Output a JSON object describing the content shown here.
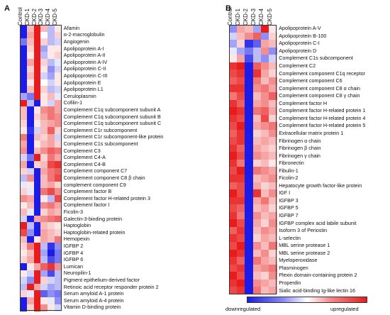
{
  "chart_data": [
    {
      "type": "heatmap",
      "panel": "A",
      "columns": [
        "Control",
        "CKD-1",
        "CKD-2",
        "CKD-3",
        "CKD-4",
        "CKD-5"
      ],
      "rows": [
        "Afamin",
        "α-2-macroglobulin",
        "Angiogenin",
        "Apolipoprotein A-I",
        "Apolipoprotein A-II",
        "Apolipoprotein A-IV",
        "Apolipoprotein C-II",
        "Apolipoprotein C-III",
        "Apolipoprotein E",
        "Apolipoprotein L1",
        "Ceruloplasmin",
        "Cofilin-1",
        "Complement C1q subcomponent subunit A",
        "Complement C1q subcomponent subunit B",
        "Complement C1q subcomponent subunit C",
        "Complement C1r subcomponent",
        "Complement C1r subcomponent-like protein",
        "Complement C1s subcomponent",
        "Complement C3",
        "Complement C4-A",
        "Complement C4-B",
        "Complement component C7",
        "Complement component C8 β chain",
        "complement component C9",
        "Complement factor B",
        "Complement factor H-related protein 3",
        "Complement factor I",
        "Ficolin-3",
        "Galectin-3-binding protein",
        "Haptoglobin",
        "Haptoglobin-related protein",
        "Hemopexin",
        "IGFBP 2",
        "IGFBP 4",
        "IGFBP 6",
        "Lumican",
        "Neuropilin-1",
        "Pigment epithelium-derived factor",
        "Retinoic acid receptor responder protein 2",
        "Serum amyloid A-1 protein",
        "Serum amyloid A-4 protein",
        "Vitamin D-binding protein"
      ],
      "values": [
        [
          -1,
          0.3,
          1,
          0.3,
          -0.3,
          0.1
        ],
        [
          -1,
          0.4,
          1,
          0,
          -0.3,
          0.2
        ],
        [
          -0.6,
          0.3,
          1,
          0.2,
          -0.3,
          -0.2
        ],
        [
          -1,
          0.2,
          1,
          -0.4,
          0.1,
          0.1
        ],
        [
          -1,
          0.1,
          1,
          -0.3,
          0.1,
          0.2
        ],
        [
          -1,
          0.4,
          1,
          0.2,
          -0.3,
          -0.1
        ],
        [
          -1,
          0.2,
          1,
          0.1,
          -0.5,
          -0.2
        ],
        [
          -1,
          0.3,
          1,
          -0.2,
          -0.4,
          0.1
        ],
        [
          -1,
          0.1,
          1,
          0,
          -0.2,
          0.1
        ],
        [
          -1,
          0.3,
          1,
          0.2,
          -0.3,
          -0.2
        ],
        [
          -0.4,
          -0.6,
          1,
          0.1,
          0.3,
          -0.1
        ],
        [
          1,
          -0.3,
          -1,
          0.1,
          -0.2,
          0.4
        ],
        [
          0.3,
          -1,
          0.1,
          0.5,
          0.6,
          0.4
        ],
        [
          0.3,
          -1,
          0.2,
          0.4,
          0.6,
          0.5
        ],
        [
          0.2,
          -1,
          0.1,
          0.3,
          0.4,
          0.5
        ],
        [
          0.1,
          -0.9,
          -0.2,
          0.3,
          0.7,
          0.2
        ],
        [
          0.6,
          -1,
          0.3,
          0.2,
          0.4,
          -0.2
        ],
        [
          0.4,
          -1,
          0.1,
          0.3,
          0.4,
          0.2
        ],
        [
          0.5,
          -1,
          0.3,
          0.5,
          0.7,
          0.6
        ],
        [
          -0.2,
          -0.6,
          1,
          0.2,
          0.6,
          0.4
        ],
        [
          0.4,
          -1,
          0.2,
          0.3,
          0.8,
          0.9
        ],
        [
          0.2,
          -0.2,
          -1,
          0.4,
          0.6,
          0.7
        ],
        [
          -0.3,
          0.5,
          -1,
          0.3,
          0.6,
          0.8
        ],
        [
          -0.1,
          0.1,
          -1,
          0.3,
          0.4,
          0.2
        ],
        [
          0.2,
          -0.1,
          -1,
          0.6,
          0.8,
          0.5
        ],
        [
          0.5,
          0.4,
          -1,
          0.1,
          -0.3,
          0.8
        ],
        [
          0.1,
          0.3,
          -1,
          0.5,
          0.6,
          0.4
        ],
        [
          0.3,
          -0.1,
          -1,
          0.2,
          0.4,
          0.3
        ],
        [
          -0.2,
          -1,
          0.4,
          0.5,
          0.6,
          0.7
        ],
        [
          1,
          -0.3,
          -1,
          0.3,
          0.2,
          0.1
        ],
        [
          0.8,
          -0.5,
          -1,
          0.4,
          0.3,
          0.2
        ],
        [
          0.3,
          -1,
          0.1,
          0.4,
          0.3,
          0.6
        ],
        [
          0.2,
          0.6,
          1,
          -0.3,
          -0.9,
          -0.5
        ],
        [
          0.1,
          0.3,
          1,
          -0.4,
          -1,
          -0.6
        ],
        [
          0.2,
          0.4,
          1,
          -0.3,
          -0.8,
          -0.6
        ],
        [
          -1,
          0.1,
          0.4,
          0.7,
          0.9,
          0.5
        ],
        [
          0.1,
          -0.2,
          1,
          -0.4,
          -0.8,
          -0.3
        ],
        [
          -0.2,
          -0.5,
          1,
          0.2,
          -0.2,
          -0.3
        ],
        [
          -0.3,
          1,
          0.4,
          -0.2,
          -0.4,
          -0.3
        ],
        [
          0.2,
          -0.1,
          1,
          -0.7,
          -0.5,
          -0.6
        ],
        [
          -1,
          0.4,
          1,
          0.1,
          -0.1,
          -0.5
        ],
        [
          -1,
          0.2,
          1,
          0.5,
          0.1,
          -0.2
        ]
      ]
    },
    {
      "type": "heatmap",
      "panel": "B",
      "columns": [
        "Control",
        "CKD-1",
        "CKD-2",
        "CKD-3",
        "CKD-4",
        "CKD-5"
      ],
      "rows": [
        "Apolipoprotein A-V",
        "Apolipoprotein B-100",
        "Apolipoprotein C-I",
        "Apolipoprotein D",
        "Complement C1s subcomponent",
        "Complement C2",
        "Complement component C1q receptor",
        "Complement component C6",
        "Complement component C8 α chain",
        "Complement component C8 γ chain",
        "Complement factor H",
        "Complement factor H-related protein 1",
        "Complement factor H-related protein 4",
        "Complement factor H-related protein 5",
        "Extracellular matrix protein 1",
        "Fibrinogen α chain",
        "Fibrinogen β chain",
        "Fibrinogen γ chain",
        "Fibronectin",
        "Fibulin-1",
        "Ficolin-2",
        "Hepatocyte growth factor-like protein",
        "IGF I",
        "IGFBP 3",
        "IGFBP 5",
        "IGFBP 7",
        "IGFBP complex acid labile subunit",
        "Isoform 3 of Periostin",
        "L-selectin",
        "MBL serine protease 1",
        "MBL serine protease 2",
        "Myeloperoxidase",
        "Plasminogen",
        "Plexin domain-containing protein 2",
        "Properdin",
        "Sialic acid-binding Ig-like lectin 16"
      ],
      "values": [
        [
          -0.5,
          0.4,
          0.3,
          -0.4,
          1,
          0.1
        ],
        [
          -0.2,
          0.3,
          0.5,
          0.7,
          -0.5,
          0.2
        ],
        [
          -0.4,
          0.2,
          -0.9,
          -0.7,
          0.4,
          0.3
        ],
        [
          -0.1,
          -0.4,
          -0.6,
          -0.3,
          0.5,
          -0.5
        ],
        [
          0.1,
          0.4,
          -0.8,
          -0.3,
          -0.5,
          -0.2
        ],
        [
          0.9,
          1,
          -1,
          0.7,
          0.5,
          0.3
        ],
        [
          0.8,
          0.9,
          -1,
          0.9,
          0.4,
          0.2
        ],
        [
          0.7,
          0.8,
          -1,
          0.6,
          0.3,
          0.5
        ],
        [
          0.9,
          0.9,
          -1,
          0.5,
          0.6,
          0.4
        ],
        [
          0.6,
          0.8,
          -1,
          0.3,
          0.5,
          0.7
        ],
        [
          0.9,
          0.7,
          -1,
          0.4,
          0.5,
          0.3
        ],
        [
          1,
          0.9,
          -1,
          0.6,
          0.7,
          0.4
        ],
        [
          0.9,
          0.8,
          -1,
          0.3,
          0.8,
          0.2
        ],
        [
          0.8,
          1,
          -1,
          0.4,
          0.5,
          0.6
        ],
        [
          0.7,
          0.9,
          -1,
          0.2,
          0.3,
          0.5
        ],
        [
          0.8,
          0.9,
          -1,
          0.3,
          0.4,
          0.3
        ],
        [
          0.9,
          0.7,
          -1,
          0.4,
          0.3,
          0.2
        ],
        [
          1,
          0.8,
          -1,
          0.5,
          0.4,
          0.3
        ],
        [
          0.9,
          0.6,
          -1,
          0.2,
          0.3,
          0.1
        ],
        [
          0.8,
          1,
          -1,
          0.6,
          0.5,
          0.4
        ],
        [
          0.9,
          0.9,
          -1,
          0.3,
          0.4,
          0.5
        ],
        [
          0.7,
          0.8,
          -1,
          0.4,
          0.2,
          0.3
        ],
        [
          1,
          0.8,
          -1,
          0.9,
          0.3,
          0.5
        ],
        [
          0.9,
          0.9,
          -1,
          0.4,
          0.6,
          0.3
        ],
        [
          0.8,
          0.7,
          -1,
          0.3,
          0.4,
          0.2
        ],
        [
          0.9,
          0.6,
          -1,
          0.5,
          0.3,
          0.4
        ],
        [
          1,
          0.8,
          -1,
          0.4,
          0.2,
          0.5
        ],
        [
          0.7,
          0.9,
          -1,
          0.3,
          0.5,
          0.4
        ],
        [
          0.9,
          0.8,
          -1,
          0.2,
          0.4,
          0.3
        ],
        [
          0.8,
          1,
          -1,
          0.5,
          0.3,
          0.6
        ],
        [
          1,
          0.9,
          -1,
          0.3,
          0.5,
          0.2
        ],
        [
          0.9,
          0.7,
          -1,
          0.6,
          0.4,
          0.3
        ],
        [
          0.8,
          0.9,
          -1,
          0.4,
          0.5,
          0.6
        ],
        [
          1,
          0.8,
          -1,
          0.3,
          0.2,
          0.5
        ],
        [
          0.9,
          1,
          -1,
          0.5,
          0.4,
          0.3
        ],
        [
          0.8,
          0.9,
          -1,
          0.6,
          0.3,
          0.4
        ]
      ]
    }
  ],
  "legend": {
    "low_label": "downregulated",
    "high_label": "upregulated",
    "low_color": "#1c1ce8",
    "mid_color": "#ffffff",
    "high_color": "#e81c1c"
  }
}
